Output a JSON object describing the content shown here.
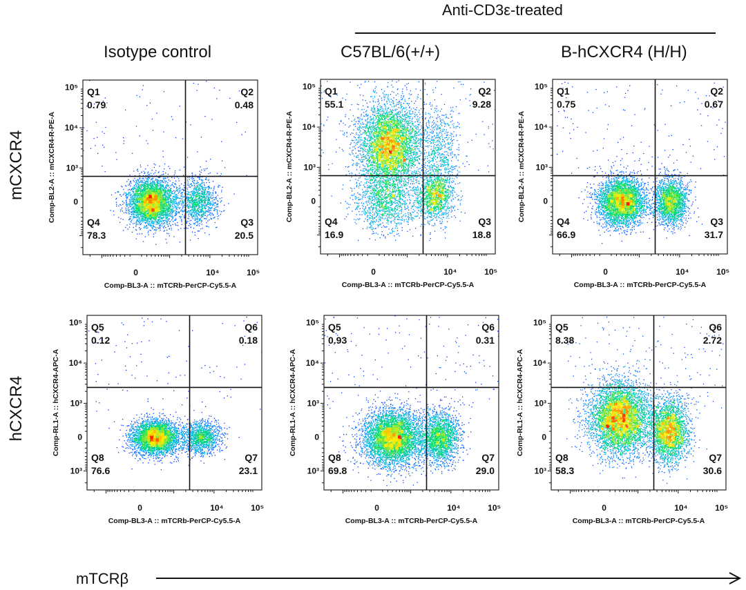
{
  "header": {
    "group_title": "Anti-CD3ε-treated",
    "columns": [
      "Isotype control",
      "C57BL/6(+/+)",
      "B-hCXCR4 (H/H)"
    ]
  },
  "rows": [
    "mCXCR4",
    "hCXCR4"
  ],
  "footer": {
    "x_label": "mTCRβ"
  },
  "colors": {
    "frame": "#222222",
    "gate": "#111111",
    "density": [
      "#0000ff",
      "#00aaff",
      "#00dd66",
      "#ffee00",
      "#ff2200"
    ]
  },
  "chart_data": [
    {
      "type": "scatter",
      "title": "Isotype control — mCXCR4",
      "xlabel": "Comp-BL3-A :: mTCRb-PerCP-Cy5.5-A",
      "ylabel": "Comp-BL2-A :: mCXCR4-R-PE-A",
      "x_ticks": [
        "0",
        "10⁴",
        "10⁵"
      ],
      "y_ticks": [
        "10⁵",
        "10⁴",
        "10³",
        "0"
      ],
      "gate": {
        "x": 2500,
        "y": 600
      },
      "quadrants": [
        {
          "name": "Q1",
          "value": "0.79"
        },
        {
          "name": "Q2",
          "value": "0.48"
        },
        {
          "name": "Q3",
          "value": "20.5"
        },
        {
          "name": "Q4",
          "value": "78.3"
        }
      ],
      "clusters": [
        {
          "x": 300,
          "y": 0,
          "sx": 0.55,
          "sy": 0.55,
          "weight": 0.75
        },
        {
          "x": 5000,
          "y": 0,
          "sx": 0.45,
          "sy": 0.55,
          "weight": 0.23
        }
      ],
      "n_events": 5200
    },
    {
      "type": "scatter",
      "title": "C57BL/6(+/+) — mCXCR4",
      "xlabel": "Comp-BL3-A :: mTCRb-PerCP-Cy5.5-A",
      "ylabel": "Comp-BL2-A :: mCXCR4-R-PE-A",
      "x_ticks": [
        "0",
        "10⁴",
        "10⁵"
      ],
      "y_ticks": [
        "10⁵",
        "10⁴",
        "10³",
        "0"
      ],
      "gate": {
        "x": 2500,
        "y": 600
      },
      "quadrants": [
        {
          "name": "Q1",
          "value": "55.1"
        },
        {
          "name": "Q2",
          "value": "9.28"
        },
        {
          "name": "Q3",
          "value": "18.8"
        },
        {
          "name": "Q4",
          "value": "16.9"
        }
      ],
      "clusters": [
        {
          "x": 300,
          "y": 3500,
          "sx": 0.7,
          "sy": 1.0,
          "weight": 0.6
        },
        {
          "x": 200,
          "y": 0,
          "sx": 0.7,
          "sy": 0.7,
          "weight": 0.15
        },
        {
          "x": 5000,
          "y": 100,
          "sx": 0.45,
          "sy": 0.6,
          "weight": 0.17
        },
        {
          "x": 6000,
          "y": 3000,
          "sx": 0.45,
          "sy": 1.0,
          "weight": 0.08
        }
      ],
      "n_events": 8000
    },
    {
      "type": "scatter",
      "title": "B-hCXCR4 (H/H) — mCXCR4",
      "xlabel": "Comp-BL3-A :: mTCRb-PerCP-Cy5.5-A",
      "ylabel": "Comp-BL2-A :: mCXCR4-R-PE-A",
      "x_ticks": [
        "0",
        "10⁴",
        "10⁵"
      ],
      "y_ticks": [
        "10⁵",
        "10⁴",
        "10³",
        "0"
      ],
      "gate": {
        "x": 2500,
        "y": 600
      },
      "quadrants": [
        {
          "name": "Q1",
          "value": "0.75"
        },
        {
          "name": "Q2",
          "value": "0.67"
        },
        {
          "name": "Q3",
          "value": "31.7"
        },
        {
          "name": "Q4",
          "value": "66.9"
        }
      ],
      "clusters": [
        {
          "x": 300,
          "y": 0,
          "sx": 0.55,
          "sy": 0.55,
          "weight": 0.66
        },
        {
          "x": 6000,
          "y": 0,
          "sx": 0.4,
          "sy": 0.55,
          "weight": 0.33
        }
      ],
      "n_events": 6000
    },
    {
      "type": "scatter",
      "title": "Isotype control — hCXCR4",
      "xlabel": "Comp-BL3-A :: mTCRb-PerCP-Cy5.5-A",
      "ylabel": "Comp-RL1-A :: hCXCR4-APC-A",
      "x_ticks": [
        "0",
        "10⁴",
        "10⁵"
      ],
      "y_ticks": [
        "10⁵",
        "10⁴",
        "10³",
        "0",
        "10³"
      ],
      "gate": {
        "x": 2500,
        "y": 2500
      },
      "quadrants": [
        {
          "name": "Q5",
          "value": "0.12"
        },
        {
          "name": "Q6",
          "value": "0.18"
        },
        {
          "name": "Q7",
          "value": "23.1"
        },
        {
          "name": "Q8",
          "value": "76.6"
        }
      ],
      "clusters": [
        {
          "x": 300,
          "y": 0,
          "sx": 0.55,
          "sy": 0.4,
          "weight": 0.75
        },
        {
          "x": 5000,
          "y": 0,
          "sx": 0.45,
          "sy": 0.4,
          "weight": 0.24
        }
      ],
      "n_events": 5200
    },
    {
      "type": "scatter",
      "title": "C57BL/6(+/+) — hCXCR4",
      "xlabel": "Comp-BL3-A :: mTCRb-PerCP-Cy5.5-A",
      "ylabel": "Comp-RL1-A :: hCXCR4-APC-A",
      "x_ticks": [
        "0",
        "10⁴",
        "10⁵"
      ],
      "y_ticks": [
        "10⁵",
        "10⁴",
        "10³",
        "0",
        "10³"
      ],
      "gate": {
        "x": 2500,
        "y": 2500
      },
      "quadrants": [
        {
          "name": "Q5",
          "value": "0.93"
        },
        {
          "name": "Q6",
          "value": "0.31"
        },
        {
          "name": "Q7",
          "value": "29.0"
        },
        {
          "name": "Q8",
          "value": "69.8"
        }
      ],
      "clusters": [
        {
          "x": 300,
          "y": 0,
          "sx": 0.7,
          "sy": 0.65,
          "weight": 0.69
        },
        {
          "x": 5500,
          "y": 0,
          "sx": 0.45,
          "sy": 0.6,
          "weight": 0.29
        }
      ],
      "n_events": 7000
    },
    {
      "type": "scatter",
      "title": "B-hCXCR4 (H/H) — hCXCR4",
      "xlabel": "Comp-BL3-A :: mTCRb-PerCP-Cy5.5-A",
      "ylabel": "Comp-RL1-A :: hCXCR4-APC-A",
      "x_ticks": [
        "0",
        "10⁴",
        "10⁵"
      ],
      "y_ticks": [
        "10⁵",
        "10⁴",
        "10³",
        "0",
        "10³"
      ],
      "gate": {
        "x": 2500,
        "y": 2500
      },
      "quadrants": [
        {
          "name": "Q5",
          "value": "8.38"
        },
        {
          "name": "Q6",
          "value": "2.72"
        },
        {
          "name": "Q7",
          "value": "30.6"
        },
        {
          "name": "Q8",
          "value": "58.3"
        }
      ],
      "clusters": [
        {
          "x": 300,
          "y": 400,
          "sx": 0.7,
          "sy": 0.85,
          "weight": 0.63
        },
        {
          "x": 6000,
          "y": 100,
          "sx": 0.45,
          "sy": 0.75,
          "weight": 0.34
        }
      ],
      "n_events": 8000
    }
  ]
}
